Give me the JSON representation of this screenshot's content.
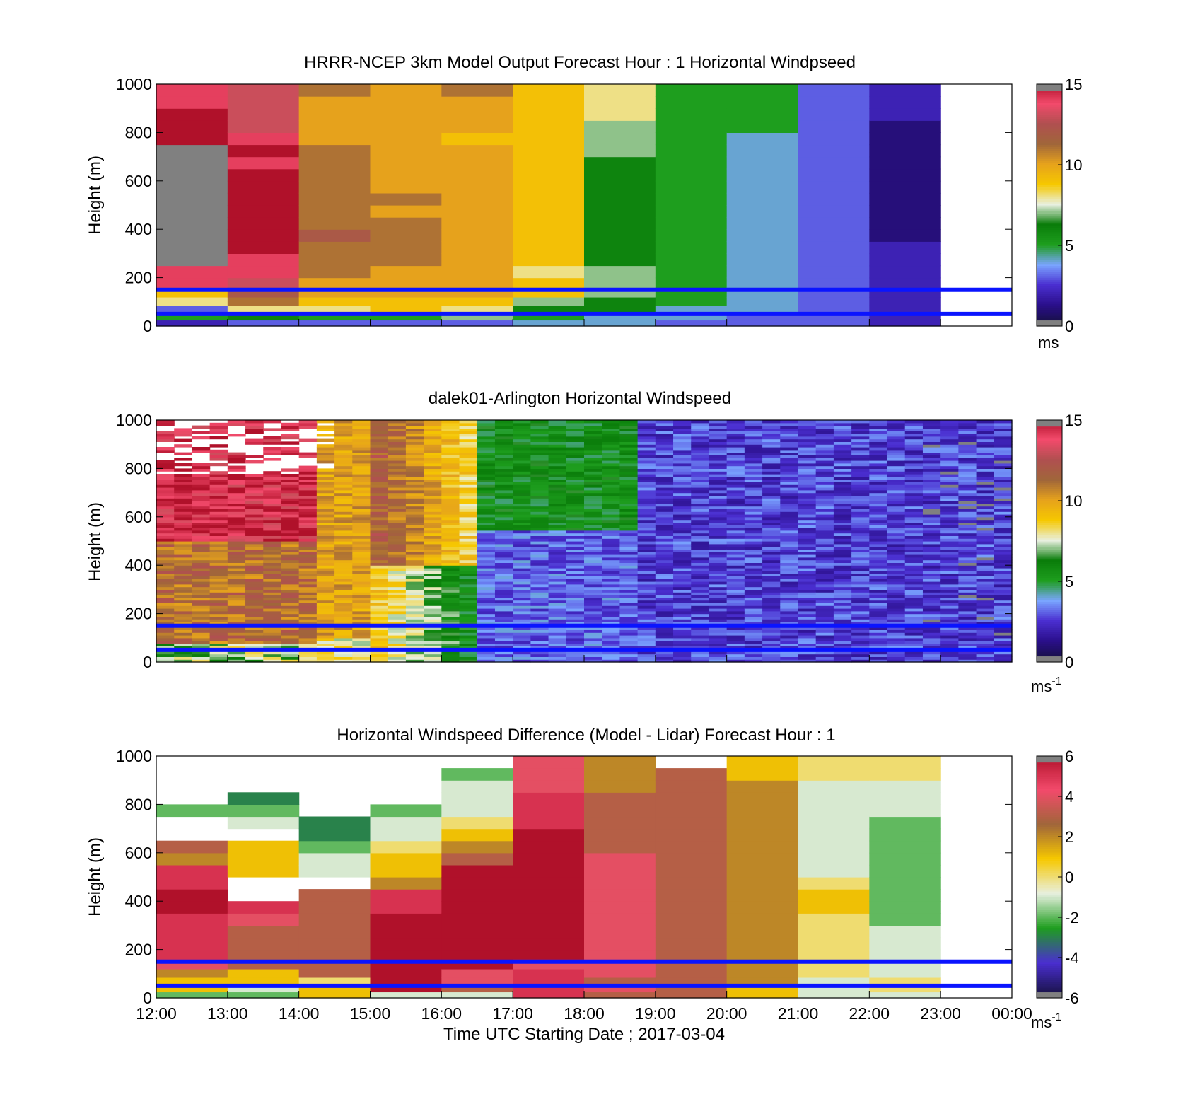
{
  "figure": {
    "panels": [
      {
        "id": "model",
        "title": "HRRR-NCEP 3km Model Output   Forecast Hour : 1 Horizontal Windpseed",
        "ylabel": "Height (m)",
        "colorbar_unit": "ms",
        "colorbar_unit_sup": "",
        "colorbar_ticks": [
          "15",
          "10",
          "5",
          "0"
        ]
      },
      {
        "id": "lidar",
        "title": "dalek01-Arlington  Horizontal Windspeed",
        "ylabel": "Height (m)",
        "colorbar_unit": "ms",
        "colorbar_unit_sup": "-1",
        "colorbar_ticks": [
          "15",
          "10",
          "5",
          "0"
        ]
      },
      {
        "id": "diff",
        "title": "Horizontal Windspeed Difference (Model - Lidar) Forecast Hour : 1",
        "ylabel": "Height (m)",
        "colorbar_unit": "ms",
        "colorbar_unit_sup": "-1",
        "colorbar_ticks": [
          "6",
          "4",
          "2",
          "0",
          "-2",
          "-4",
          "-6"
        ]
      }
    ],
    "y_ticks": [
      "1000",
      "800",
      "600",
      "400",
      "200",
      "0"
    ],
    "x_ticks": [
      "12:00",
      "13:00",
      "14:00",
      "15:00",
      "16:00",
      "17:00",
      "18:00",
      "19:00",
      "20:00",
      "21:00",
      "22:00",
      "23:00",
      "00:00"
    ],
    "xlabel": "Time UTC  Starting Date ; 2017-03-04"
  },
  "chart_data": [
    {
      "type": "heatmap",
      "title": "HRRR-NCEP 3km Model Output   Forecast Hour : 1 Horizontal Windpseed",
      "ylabel": "Height (m)",
      "ylim": [
        0,
        1000
      ],
      "x": [
        "12:00",
        "13:00",
        "14:00",
        "15:00",
        "16:00",
        "17:00",
        "18:00",
        "19:00",
        "20:00",
        "21:00",
        "22:00",
        "23:00"
      ],
      "heights": [
        25,
        55,
        85,
        120,
        160,
        200,
        250,
        300,
        350,
        400,
        450,
        500,
        550,
        600,
        650,
        700,
        750,
        800,
        850,
        900,
        950,
        1000
      ],
      "values": [
        [
          2,
          5,
          3,
          8,
          9,
          14,
          14,
          15,
          15,
          15,
          15,
          15,
          15,
          15,
          15,
          15,
          15,
          15,
          15,
          15,
          14,
          14
        ],
        [
          3,
          6,
          8,
          11,
          12,
          13,
          14,
          14,
          15,
          15,
          15,
          15,
          15,
          15,
          15,
          14,
          15,
          14,
          13,
          13,
          13,
          13
        ],
        [
          3,
          5,
          8,
          9,
          10,
          10,
          11,
          11,
          11,
          12,
          11,
          11,
          11,
          11,
          11,
          11,
          11,
          10,
          10,
          10,
          10,
          11
        ],
        [
          3,
          5,
          9,
          9,
          10,
          10,
          10,
          11,
          11,
          11,
          11,
          10,
          11,
          10,
          10,
          10,
          10,
          10,
          10,
          10,
          10,
          10
        ],
        [
          3,
          7,
          8,
          9,
          10,
          10,
          10,
          10,
          10,
          10,
          10,
          10,
          10,
          10,
          10,
          10,
          10,
          9,
          10,
          10,
          10,
          11
        ],
        [
          4,
          5,
          6,
          7,
          9,
          9,
          8,
          9,
          9,
          9,
          9,
          9,
          9,
          9,
          9,
          9,
          9,
          9,
          9,
          9,
          9,
          9
        ],
        [
          4,
          4,
          6,
          6,
          7,
          7,
          7,
          6,
          6,
          6,
          6,
          6,
          6,
          6,
          6,
          6,
          7,
          7,
          7,
          8,
          8,
          8
        ],
        [
          3,
          4,
          4,
          5,
          5,
          5,
          5,
          5,
          5,
          5,
          5,
          5,
          5,
          5,
          5,
          5,
          5,
          5,
          5,
          5,
          5,
          5
        ],
        [
          3,
          3,
          4,
          4,
          4,
          4,
          4,
          4,
          4,
          4,
          4,
          4,
          4,
          4,
          4,
          4,
          4,
          4,
          5,
          5,
          5,
          5
        ],
        [
          3,
          3,
          3,
          3,
          3,
          3,
          3,
          3,
          3,
          3,
          3,
          3,
          3,
          3,
          3,
          3,
          3,
          3,
          3,
          3,
          3,
          3
        ],
        [
          2,
          2,
          2,
          2,
          2,
          2,
          2,
          2,
          2,
          1,
          1,
          1,
          1,
          1,
          1,
          1,
          1,
          1,
          1,
          2,
          2,
          2
        ],
        [
          null,
          null,
          null,
          null,
          null,
          null,
          null,
          null,
          null,
          null,
          null,
          null,
          null,
          null,
          null,
          null,
          null,
          null,
          null,
          null,
          null,
          null
        ]
      ],
      "colorbar": {
        "min": 0,
        "max": 15,
        "unit": "ms"
      }
    },
    {
      "type": "heatmap",
      "title": "dalek01-Arlington  Horizontal Windspeed",
      "ylabel": "Height (m)",
      "ylim": [
        0,
        1000
      ],
      "x_range": [
        "12:00",
        "00:00"
      ],
      "colorbar": {
        "min": 0,
        "max": 15,
        "unit": "ms-1"
      }
    },
    {
      "type": "heatmap",
      "title": "Horizontal Windspeed Difference (Model - Lidar) Forecast Hour : 1",
      "ylabel": "Height (m)",
      "ylim": [
        0,
        1000
      ],
      "x": [
        "12:00",
        "13:00",
        "14:00",
        "15:00",
        "16:00",
        "17:00",
        "18:00",
        "19:00",
        "20:00",
        "21:00",
        "22:00",
        "23:00"
      ],
      "heights": [
        25,
        55,
        85,
        120,
        160,
        200,
        250,
        300,
        350,
        400,
        450,
        500,
        550,
        600,
        650,
        700,
        750,
        800,
        850,
        900,
        950,
        1000
      ],
      "values": [
        [
          -2,
          1,
          1,
          2,
          4,
          5,
          5,
          5,
          5,
          6,
          6,
          5,
          5,
          2,
          3,
          null,
          null,
          -2,
          null,
          null,
          null,
          null
        ],
        [
          -2,
          -1,
          1,
          1,
          3,
          3,
          3,
          3,
          4,
          5,
          null,
          null,
          1,
          1,
          1,
          null,
          -1,
          -2,
          -3,
          null,
          null,
          null
        ],
        [
          1,
          1,
          0,
          3,
          3,
          3,
          3,
          3,
          3,
          3,
          3,
          null,
          -1,
          -1,
          -2,
          -3,
          -3,
          null,
          null,
          null,
          null,
          null
        ],
        [
          -1,
          6,
          6,
          6,
          6,
          6,
          6,
          6,
          6,
          5,
          5,
          2,
          1,
          1,
          0,
          -1,
          -1,
          -2,
          null,
          null,
          null,
          null
        ],
        [
          -1,
          3,
          4,
          4,
          6,
          6,
          6,
          6,
          6,
          6,
          6,
          6,
          6,
          3,
          2,
          1,
          0,
          -1,
          -1,
          -1,
          -2,
          null
        ],
        [
          5,
          5,
          5,
          5,
          4,
          6,
          6,
          6,
          6,
          6,
          6,
          6,
          6,
          6,
          6,
          6,
          5,
          5,
          5,
          4,
          4,
          4
        ],
        [
          3,
          4,
          3,
          4,
          4,
          4,
          4,
          4,
          4,
          4,
          4,
          4,
          4,
          4,
          3,
          3,
          3,
          3,
          3,
          2,
          2,
          2
        ],
        [
          3,
          3,
          3,
          3,
          3,
          3,
          3,
          3,
          3,
          3,
          3,
          3,
          3,
          3,
          3,
          3,
          3,
          3,
          3,
          3,
          3,
          null
        ],
        [
          1,
          1,
          2,
          2,
          2,
          2,
          2,
          2,
          2,
          2,
          2,
          2,
          2,
          2,
          2,
          2,
          2,
          2,
          2,
          2,
          1,
          1
        ],
        [
          -1,
          -1,
          -1,
          0,
          0,
          0,
          0,
          0,
          0,
          1,
          1,
          0,
          -1,
          -1,
          -1,
          -1,
          -1,
          -1,
          -1,
          -1,
          0,
          0
        ],
        [
          -1,
          0,
          0,
          -1,
          -1,
          -1,
          -1,
          -1,
          -2,
          -2,
          -2,
          -2,
          -2,
          -2,
          -2,
          -2,
          -2,
          -1,
          -1,
          -1,
          0,
          0
        ],
        [
          null,
          null,
          null,
          null,
          null,
          null,
          null,
          null,
          null,
          null,
          null,
          null,
          null,
          null,
          null,
          null,
          null,
          null,
          null,
          null,
          null,
          null
        ]
      ],
      "colorbar": {
        "min": -6,
        "max": 6,
        "unit": "ms-1"
      }
    }
  ],
  "reference_lines_m": [
    50,
    150
  ],
  "colors": {
    "reference_line": "#0a14ff",
    "missing": "#808080",
    "speed_scale": [
      "#14103a",
      "#2a0f8a",
      "#4a2ed0",
      "#7aa5ff",
      "#1e9e1e",
      "#0a7d0a",
      "#e8f0e0",
      "#f6c800",
      "#e6a21c",
      "#a0663a",
      "#b05050",
      "#f24a6b",
      "#b0112a"
    ],
    "diff_scale": [
      "#14103a",
      "#4a2ed0",
      "#1e9e1e",
      "#e8f0e0",
      "#f6c800",
      "#a0663a",
      "#f24a6b",
      "#b0112a"
    ]
  }
}
